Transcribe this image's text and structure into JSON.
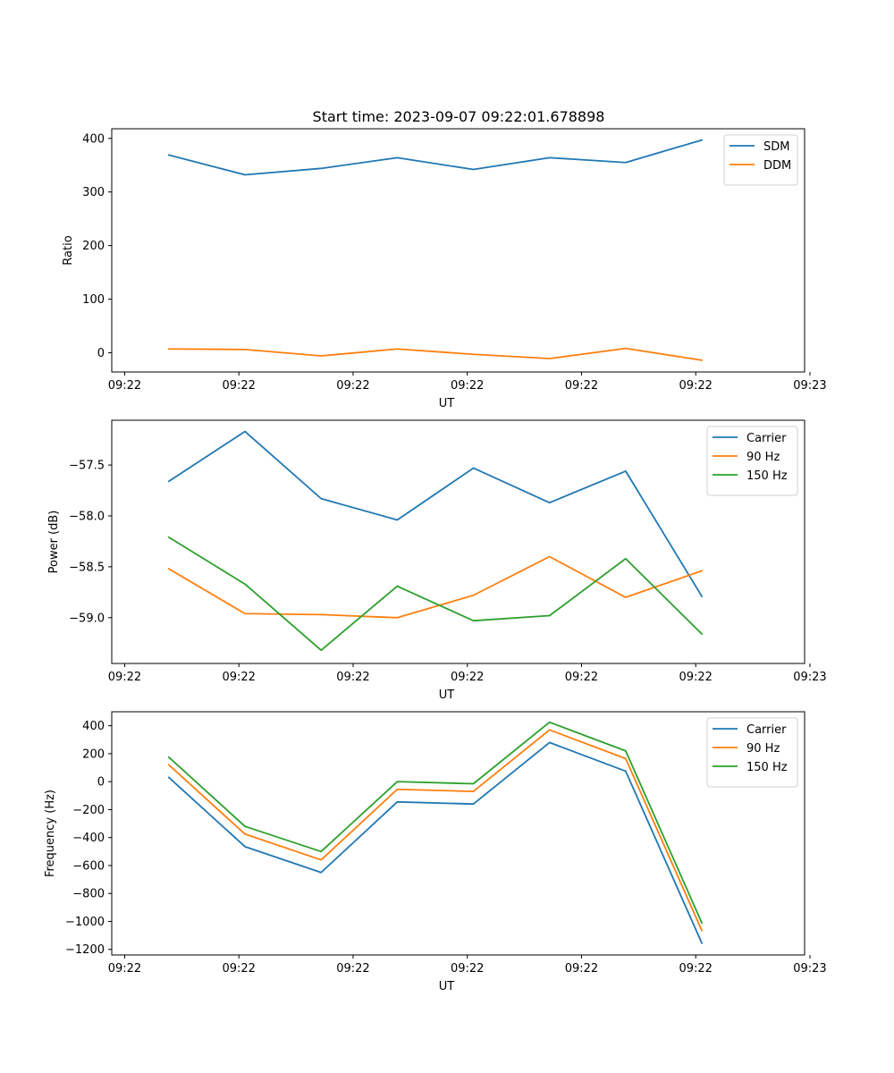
{
  "title": "Start time: 2023-09-07 09:22:01.678898",
  "chart_data": [
    {
      "type": "line",
      "title": "Start time: 2023-09-07 09:22:01.678898",
      "xlabel": "UT",
      "ylabel": "Ratio",
      "x": [
        1,
        2,
        3,
        4,
        5,
        6,
        7,
        8
      ],
      "xlim": [
        0.25,
        9.35
      ],
      "ylim": [
        -36,
        418
      ],
      "xticks": [
        0.42,
        1.92,
        3.42,
        4.92,
        6.42,
        7.92,
        9.42
      ],
      "xtick_labels": [
        "09:22",
        "09:22",
        "09:22",
        "09:22",
        "09:22",
        "09:22",
        "09:23"
      ],
      "yticks": [
        0,
        100,
        200,
        300,
        400
      ],
      "ytick_labels": [
        "0",
        "100",
        "200",
        "300",
        "400"
      ],
      "legend_position": "top-right",
      "series": [
        {
          "name": "SDM",
          "color": "#1f77b4",
          "values": [
            369,
            332,
            344,
            364,
            342,
            364,
            355,
            397
          ]
        },
        {
          "name": "DDM",
          "color": "#ff7f0e",
          "values": [
            7,
            6,
            -6,
            7,
            -3,
            -11,
            8,
            -14
          ]
        }
      ]
    },
    {
      "type": "line",
      "title": "",
      "xlabel": "UT",
      "ylabel": "Power (dB)",
      "x": [
        1,
        2,
        3,
        4,
        5,
        6,
        7,
        8
      ],
      "xlim": [
        0.25,
        9.35
      ],
      "ylim": [
        -59.45,
        -57.06
      ],
      "xticks": [
        0.42,
        1.92,
        3.42,
        4.92,
        6.42,
        7.92,
        9.42
      ],
      "xtick_labels": [
        "09:22",
        "09:22",
        "09:22",
        "09:22",
        "09:22",
        "09:22",
        "09:23"
      ],
      "yticks": [
        -57.5,
        -58.0,
        -58.5,
        -59.0
      ],
      "ytick_labels": [
        "−57.5",
        "−58.0",
        "−58.5",
        "−59.0"
      ],
      "legend_position": "top-right",
      "series": [
        {
          "name": "Carrier",
          "color": "#1f77b4",
          "values": [
            -57.66,
            -57.17,
            -57.83,
            -58.04,
            -57.53,
            -57.87,
            -57.56,
            -58.79
          ]
        },
        {
          "name": "90 Hz",
          "color": "#ff7f0e",
          "values": [
            -58.52,
            -58.96,
            -58.97,
            -59.0,
            -58.78,
            -58.4,
            -58.8,
            -58.54
          ]
        },
        {
          "name": "150 Hz",
          "color": "#2ca02c",
          "values": [
            -58.21,
            -58.67,
            -59.32,
            -58.69,
            -59.03,
            -58.98,
            -58.42,
            -59.16
          ]
        }
      ]
    },
    {
      "type": "line",
      "title": "",
      "xlabel": "UT",
      "ylabel": "Frequency (Hz)",
      "x": [
        1,
        2,
        3,
        4,
        5,
        6,
        7,
        8
      ],
      "xlim": [
        0.25,
        9.35
      ],
      "ylim": [
        -1240,
        500
      ],
      "xticks": [
        0.42,
        1.92,
        3.42,
        4.92,
        6.42,
        7.92,
        9.42
      ],
      "xtick_labels": [
        "09:22",
        "09:22",
        "09:22",
        "09:22",
        "09:22",
        "09:22",
        "09:23"
      ],
      "yticks": [
        400,
        200,
        0,
        -200,
        -400,
        -600,
        -800,
        -1000,
        -1200
      ],
      "ytick_labels": [
        "400",
        "200",
        "0",
        "−200",
        "−400",
        "−600",
        "−800",
        "−1000",
        "−1200"
      ],
      "legend_position": "top-right",
      "series": [
        {
          "name": "Carrier",
          "color": "#1f77b4",
          "values": [
            30,
            -465,
            -650,
            -145,
            -160,
            280,
            75,
            -1155
          ]
        },
        {
          "name": "90 Hz",
          "color": "#ff7f0e",
          "values": [
            120,
            -375,
            -560,
            -55,
            -70,
            370,
            165,
            -1065
          ]
        },
        {
          "name": "150 Hz",
          "color": "#2ca02c",
          "values": [
            175,
            -320,
            -500,
            0,
            -15,
            425,
            220,
            -1010
          ]
        }
      ]
    }
  ]
}
